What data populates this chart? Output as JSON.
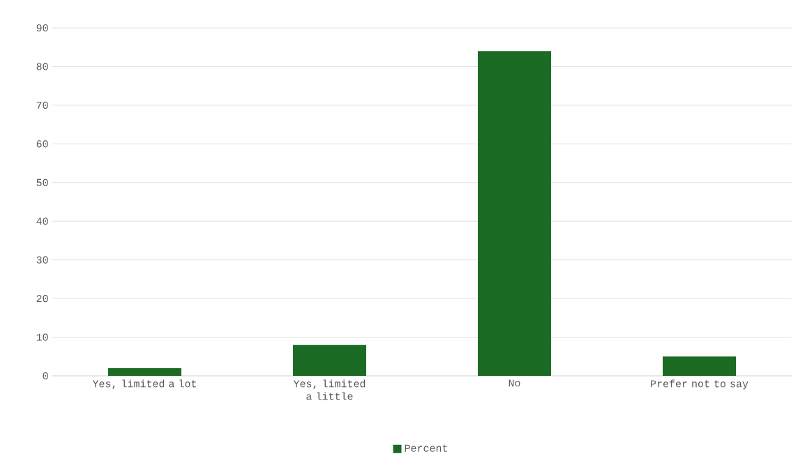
{
  "chart_data": {
    "type": "bar",
    "categories": [
      "Yes, limited a lot",
      "Yes, limited a little",
      "No",
      "Prefer not to say"
    ],
    "series": [
      {
        "name": "Percent",
        "color": "#1b6b25",
        "values": [
          2,
          8,
          84,
          5
        ]
      }
    ],
    "ylim": [
      0,
      90
    ],
    "yticks": [
      0,
      10,
      20,
      30,
      40,
      50,
      60,
      70,
      80,
      90
    ],
    "grid": "y",
    "legend": "bottom"
  }
}
